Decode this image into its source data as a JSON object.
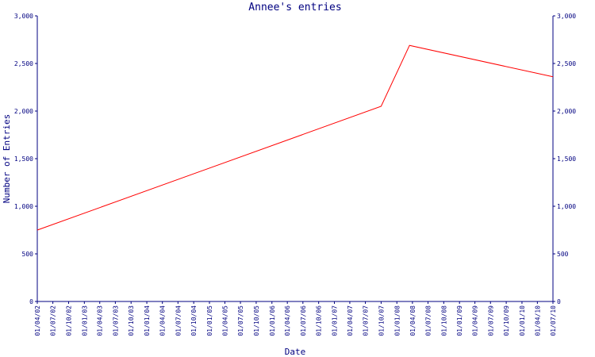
{
  "chart_data": {
    "type": "line",
    "title": "Annee's entries",
    "xlabel": "Date",
    "ylabel": "Number of Entries",
    "ylim": [
      0,
      3000
    ],
    "y_ticks": [
      0,
      500,
      1000,
      1500,
      2000,
      2500,
      3000
    ],
    "y_tick_labels": [
      "0",
      "500",
      "1,000",
      "1,500",
      "2,000",
      "2,500",
      "3,000"
    ],
    "x_tick_labels": [
      "01/04/02",
      "01/07/02",
      "01/10/02",
      "01/01/03",
      "01/04/03",
      "01/07/03",
      "01/10/03",
      "01/01/04",
      "01/04/04",
      "01/07/04",
      "01/10/04",
      "01/01/05",
      "01/04/05",
      "01/07/05",
      "01/10/05",
      "01/01/06",
      "01/04/06",
      "01/07/06",
      "01/10/06",
      "01/01/07",
      "01/04/07",
      "01/07/07",
      "01/10/07",
      "01/01/08",
      "01/04/08",
      "01/07/08",
      "01/10/08",
      "01/01/09",
      "01/04/09",
      "01/07/09",
      "01/10/09",
      "01/01/10",
      "01/04/10",
      "01/07/10"
    ],
    "grid": false,
    "series": [
      {
        "color": "#ff0000",
        "points": [
          {
            "x": "2002-04-01",
            "y": 750
          },
          {
            "x": "2007-10-01",
            "y": 2050
          },
          {
            "x": "2008-03-15",
            "y": 2690
          },
          {
            "x": "2010-07-01",
            "y": 2360
          }
        ]
      }
    ]
  }
}
